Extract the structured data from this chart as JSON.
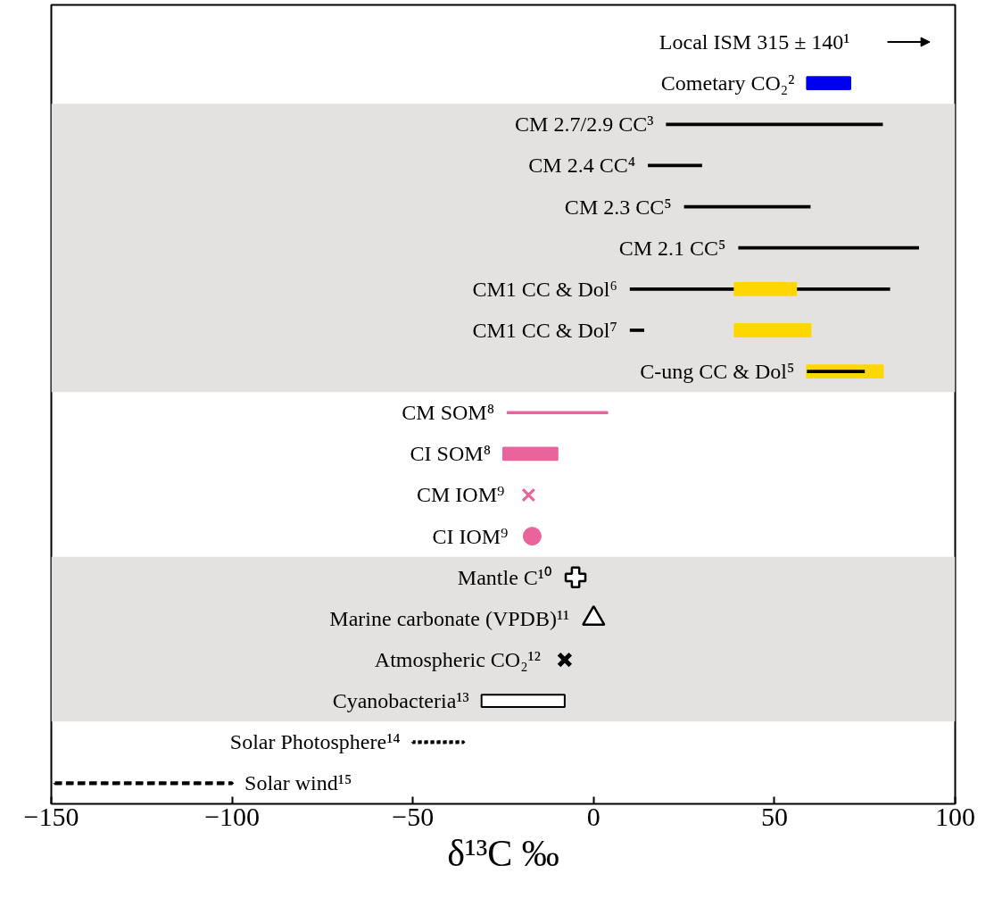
{
  "chart_data": {
    "type": "bar",
    "orientation": "horizontal",
    "categories": [
      "Local ISM 315 ± 140¹",
      "Cometary CO₂²",
      "CM 2.7/2.9 CC³",
      "CM 2.4 CC⁴",
      "CM 2.3 CC⁵",
      "CM 2.1 CC⁵",
      "CM1 CC & Dol⁶",
      "CM1 CC & Dol⁷",
      "C-ung CC & Dol⁵",
      "CM SOM⁸",
      "CI SOM⁸",
      "CM IOM⁹",
      "CI IOM⁹",
      "Mantle C¹⁰",
      "Marine carbonate (VPDB)¹¹",
      "Atmospheric CO₂¹²",
      "Cyanobacteria¹³",
      "Solar Photosphere¹⁴",
      "Solar wind¹⁵"
    ],
    "series": [
      {
        "line_style": "solid",
        "color": "#000000",
        "base": [
          null,
          null,
          20,
          15,
          25,
          40,
          10,
          10,
          null,
          null,
          null,
          null,
          null,
          null,
          null,
          null,
          null,
          null,
          null
        ],
        "values": [
          null,
          null,
          60,
          15,
          35,
          50,
          72,
          4,
          null,
          null,
          null,
          null,
          null,
          null,
          null,
          null,
          null,
          null,
          null
        ]
      },
      {
        "color": "#ffd700",
        "base": [
          null,
          null,
          null,
          null,
          null,
          null,
          39,
          39,
          59,
          null,
          null,
          null,
          null,
          null,
          null,
          null,
          null,
          null,
          null
        ],
        "values": [
          null,
          null,
          null,
          null,
          null,
          null,
          17,
          21,
          21,
          null,
          null,
          null,
          null,
          null,
          null,
          null,
          null,
          null,
          null
        ]
      },
      {
        "line_style": "solid",
        "color": "#000000",
        "base": [
          null,
          null,
          null,
          null,
          null,
          null,
          null,
          null,
          59,
          null,
          null,
          null,
          null,
          null,
          null,
          null,
          null,
          null,
          null
        ],
        "values": [
          null,
          null,
          null,
          null,
          null,
          null,
          null,
          null,
          16,
          null,
          null,
          null,
          null,
          null,
          null,
          null,
          null,
          null,
          null
        ]
      },
      {
        "color": "#0000ee",
        "base": [
          null,
          59,
          null,
          null,
          null,
          null,
          null,
          null,
          null,
          null,
          null,
          null,
          null,
          null,
          null,
          null,
          null,
          null,
          null
        ],
        "values": [
          null,
          12,
          null,
          null,
          null,
          null,
          null,
          null,
          null,
          null,
          null,
          null,
          null,
          null,
          null,
          null,
          null,
          null,
          null
        ]
      },
      {
        "line_style": "solid",
        "color": "#e8649a",
        "base": [
          null,
          null,
          null,
          null,
          null,
          null,
          null,
          null,
          null,
          -24,
          null,
          null,
          null,
          null,
          null,
          null,
          null,
          null,
          null
        ],
        "values": [
          null,
          null,
          null,
          null,
          null,
          null,
          null,
          null,
          null,
          28,
          null,
          null,
          null,
          null,
          null,
          null,
          null,
          null,
          null
        ]
      },
      {
        "color": "#e8649a",
        "base": [
          null,
          null,
          null,
          null,
          null,
          null,
          null,
          null,
          null,
          null,
          -25,
          null,
          null,
          null,
          null,
          null,
          null,
          null,
          null
        ],
        "values": [
          null,
          null,
          null,
          null,
          null,
          null,
          null,
          null,
          null,
          null,
          15,
          null,
          null,
          null,
          null,
          null,
          null,
          null,
          null
        ]
      },
      {
        "type": "scatter",
        "color": "#e8649a",
        "marker": "x",
        "values": [
          null,
          null,
          null,
          null,
          null,
          null,
          null,
          null,
          null,
          null,
          null,
          -18,
          null,
          null,
          null,
          null,
          null,
          null,
          null
        ]
      },
      {
        "type": "scatter",
        "color": "#e8649a",
        "marker": "circle",
        "values": [
          null,
          null,
          null,
          null,
          null,
          null,
          null,
          null,
          null,
          null,
          null,
          null,
          -17,
          null,
          null,
          null,
          null,
          null,
          null
        ]
      },
      {
        "type": "scatter",
        "color": "#000000",
        "marker": "cross",
        "values": [
          null,
          null,
          null,
          null,
          null,
          null,
          null,
          null,
          null,
          null,
          null,
          null,
          null,
          -5,
          null,
          null,
          null,
          null,
          null
        ]
      },
      {
        "type": "scatter",
        "color": "#000000",
        "marker": "triangle",
        "values": [
          null,
          null,
          null,
          null,
          null,
          null,
          null,
          null,
          null,
          null,
          null,
          null,
          null,
          null,
          0,
          null,
          null,
          null,
          null
        ]
      },
      {
        "type": "scatter",
        "color": "#000000",
        "marker": "x",
        "values": [
          null,
          null,
          null,
          null,
          null,
          null,
          null,
          null,
          null,
          null,
          null,
          null,
          null,
          null,
          null,
          -8,
          null,
          null,
          null
        ]
      },
      {
        "color": "#ffffff",
        "base": [
          null,
          null,
          null,
          null,
          null,
          null,
          null,
          null,
          null,
          null,
          null,
          null,
          null,
          null,
          null,
          null,
          -31,
          null,
          null
        ],
        "values": [
          null,
          null,
          null,
          null,
          null,
          null,
          null,
          null,
          null,
          null,
          null,
          null,
          null,
          null,
          null,
          null,
          23,
          null,
          null
        ]
      },
      {
        "color": "#000000",
        "line_style": "dotted",
        "base": [
          null,
          null,
          null,
          null,
          null,
          null,
          null,
          null,
          null,
          null,
          null,
          null,
          null,
          null,
          null,
          null,
          null,
          -50,
          null
        ],
        "values": [
          null,
          null,
          null,
          null,
          null,
          null,
          null,
          null,
          null,
          null,
          null,
          null,
          null,
          null,
          null,
          null,
          null,
          14,
          null
        ]
      },
      {
        "color": "#000000",
        "line_style": "dashed",
        "base": [
          null,
          null,
          null,
          null,
          null,
          null,
          null,
          null,
          null,
          null,
          null,
          null,
          null,
          null,
          null,
          null,
          null,
          null,
          -149
        ],
        "values": [
          null,
          null,
          null,
          null,
          null,
          null,
          null,
          null,
          null,
          null,
          null,
          null,
          null,
          null,
          null,
          null,
          null,
          null,
          49
        ]
      }
    ],
    "bands": [
      {
        "axis": "y",
        "from": "CM 2.7/2.9 CC³",
        "to": "C-ung CC & Dol⁵",
        "color": "#e4e2e0"
      },
      {
        "axis": "y",
        "from": "Mantle C¹⁰",
        "to": "Cyanobacteria¹³",
        "color": "#e4e2e0"
      }
    ],
    "xlim": [
      -150,
      100
    ],
    "xticks": [
      -150,
      -100,
      -50,
      0,
      50,
      100
    ],
    "xlabel": "δ¹³C ‰",
    "tick_labels": "x",
    "grid": false
  }
}
